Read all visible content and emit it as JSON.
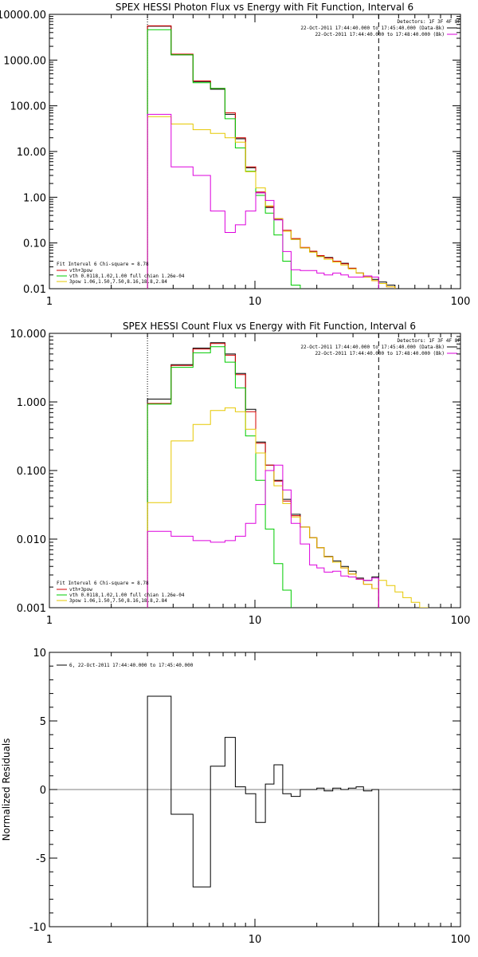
{
  "chart_data": [
    {
      "type": "line",
      "title": "SPEX HESSI Photon Flux vs Energy with Fit Function, Interval 6",
      "xscale": "log",
      "yscale": "log",
      "xlim": [
        1,
        100
      ],
      "ylim": [
        0.01,
        10000
      ],
      "yticks": [
        0.01,
        0.1,
        1,
        10,
        100,
        1000,
        10000
      ],
      "yticklabels": [
        "0.01",
        "0.10",
        "1.00",
        "10.00",
        "100.00",
        "1000.00",
        "10000.00"
      ],
      "xticks": [
        1,
        10,
        100
      ],
      "xticklabels": [
        "1",
        "10",
        "100"
      ],
      "vlines": [
        {
          "x": 3,
          "style": "dotted"
        },
        {
          "x": 40,
          "style": "dashed"
        }
      ],
      "header_text": [
        "Detectors: 1F 3F 4F 8F",
        "22-Oct-2011 17:44:40.000 to 17:45:40.000 (Data-Bk)",
        "22-Oct-2011 17:44:40.000 to 17:48:40.000 (Bk)"
      ],
      "legend_text": [
        "Fit Interval 6   Chi-square = 8.78",
        "vth+3pow",
        "vth 0.0118,1.02,1.00  full chian 1.26e-04",
        "3pow 1.06,1.50,7.50,8.16,18.8,2.84"
      ],
      "edges": [
        3.0,
        3.91,
        5.0,
        6.08,
        7.15,
        8.03,
        9.0,
        10.09,
        11.24,
        12.38,
        13.66,
        15.0,
        16.61,
        18.45,
        20.0,
        21.71,
        23.92,
        26.16,
        28.5,
        31.06,
        33.75,
        37.06,
        40.0,
        43.69,
        48.0
      ],
      "series": [
        {
          "name": "Data-Bk",
          "color": "#000000",
          "values": [
            5500,
            1300,
            340,
            230,
            65,
            19,
            4.4,
            1.25,
            0.6,
            0.33,
            0.18,
            0.12,
            0.078,
            0.065,
            0.052,
            0.048,
            0.04,
            0.036,
            0.028,
            0.022,
            0.018,
            0.016,
            0.014,
            0.012
          ]
        },
        {
          "name": "vth+3pow",
          "color": "#d40000",
          "values": [
            5600,
            1350,
            350,
            240,
            70,
            20,
            4.6,
            1.3,
            0.62,
            0.34,
            0.19,
            0.125,
            0.08,
            0.066,
            0.053,
            0.047,
            0.04,
            0.035,
            0.028,
            0.022,
            0.018,
            0.015,
            0.013,
            0.011
          ]
        },
        {
          "name": "vth",
          "color": "#00cc00",
          "values": [
            4600,
            1300,
            320,
            240,
            52,
            12,
            3.7,
            1.1,
            0.45,
            0.15,
            0.04,
            0.012,
            0.0085
          ]
        },
        {
          "name": "3pow",
          "color": "#e6c800",
          "values": [
            58,
            40,
            30,
            25,
            20,
            16,
            3.6,
            1.6,
            0.65,
            0.34,
            0.18,
            0.12,
            0.078,
            0.063,
            0.05,
            0.044,
            0.038,
            0.033,
            0.027,
            0.022,
            0.018,
            0.015,
            0.013,
            0.011
          ]
        },
        {
          "name": "Bk",
          "color": "#dd00dd",
          "values": [
            65,
            4.6,
            3.0,
            0.5,
            0.17,
            0.25,
            0.5,
            1.25,
            0.85,
            0.32,
            0.065,
            0.026,
            0.025,
            0.025,
            0.022,
            0.02,
            0.022,
            0.02,
            0.018,
            0.018,
            0.019,
            0.018
          ]
        }
      ]
    },
    {
      "type": "line",
      "title": "SPEX HESSI Count Flux vs Energy with Fit Function, Interval 6",
      "xscale": "log",
      "yscale": "log",
      "xlim": [
        1,
        100
      ],
      "ylim": [
        0.001,
        10
      ],
      "yticks": [
        0.001,
        0.01,
        0.1,
        1,
        10
      ],
      "yticklabels": [
        "0.001",
        "0.010",
        "0.100",
        "1.000",
        "10.000"
      ],
      "xticks": [
        1,
        10,
        100
      ],
      "xticklabels": [
        "1",
        "10",
        "100"
      ],
      "vlines": [
        {
          "x": 3,
          "style": "dotted"
        },
        {
          "x": 40,
          "style": "dashed"
        }
      ],
      "header_text": [
        "Detectors: 1F 3F 4F 8F",
        "22-Oct-2011 17:44:40.000 to 17:45:40.000 (Data-Bk)",
        "22-Oct-2011 17:44:40.000 to 17:48:40.000 (Bk)"
      ],
      "legend_text": [
        "Fit Interval 6   Chi-square = 8.78",
        "vth+3pow",
        "vth 0.0118,1.02,1.00  full chian 1.26e-04",
        "3pow 1.06,1.50,7.50,8.16,18.8,2.84"
      ],
      "edges": [
        3.0,
        3.91,
        5.0,
        6.08,
        7.15,
        8.03,
        9.0,
        10.09,
        11.24,
        12.38,
        13.66,
        15.0,
        16.61,
        18.45,
        20.0,
        21.71,
        23.92,
        26.16,
        28.5,
        31.06,
        33.75,
        37.06,
        40.0,
        43.69,
        48.0,
        52.45,
        57.62,
        63.31,
        69.56
      ],
      "series": [
        {
          "name": "Data-Bk",
          "color": "#000000",
          "values": [
            1.1,
            3.5,
            6.1,
            7.3,
            5.0,
            2.6,
            0.78,
            0.26,
            0.12,
            0.072,
            0.038,
            0.023,
            0.015,
            0.0105,
            0.0075,
            0.0056,
            0.0048,
            0.004,
            0.0034,
            0.0027,
            0.0025,
            0.0028
          ]
        },
        {
          "name": "vth+3pow",
          "color": "#d40000",
          "values": [
            0.95,
            3.4,
            5.9,
            7.1,
            4.8,
            2.5,
            0.72,
            0.25,
            0.12,
            0.07,
            0.036,
            0.022,
            0.015,
            0.0105,
            0.0075,
            0.0055,
            0.0046,
            0.0038,
            0.0031,
            0.0026,
            0.0022,
            0.0019
          ]
        },
        {
          "name": "vth",
          "color": "#00cc00",
          "values": [
            0.93,
            3.2,
            5.2,
            6.4,
            3.8,
            1.6,
            0.32,
            0.072,
            0.014,
            0.0044,
            0.0018,
            0.00098
          ]
        },
        {
          "name": "3pow",
          "color": "#e6c800",
          "values": [
            0.034,
            0.27,
            0.47,
            0.75,
            0.82,
            0.72,
            0.4,
            0.18,
            0.1,
            0.06,
            0.033,
            0.021,
            0.015,
            0.0105,
            0.0075,
            0.0055,
            0.0046,
            0.0038,
            0.0031,
            0.0026,
            0.0022,
            0.0019,
            0.0025,
            0.0021,
            0.0017,
            0.0014,
            0.0012,
            0.001
          ]
        },
        {
          "name": "Bk",
          "color": "#dd00dd",
          "values": [
            0.013,
            0.011,
            0.0095,
            0.009,
            0.0095,
            0.011,
            0.017,
            0.032,
            0.1,
            0.12,
            0.052,
            0.017,
            0.0085,
            0.0042,
            0.0038,
            0.0033,
            0.0034,
            0.0029,
            0.0028,
            0.0026,
            0.0025,
            0.0027
          ]
        }
      ]
    },
    {
      "type": "line",
      "title": "",
      "ylabel": "Normalized Residuals",
      "xscale": "log",
      "yscale": "linear",
      "xlim": [
        1,
        100
      ],
      "ylim": [
        -10,
        10
      ],
      "yticks": [
        -10,
        -5,
        0,
        5,
        10
      ],
      "yticklabels": [
        "-10",
        "-5",
        "0",
        "5",
        "10"
      ],
      "xticks": [
        1,
        10,
        100
      ],
      "xticklabels": [
        "1",
        "10",
        "100"
      ],
      "legend_text": [
        "6, 22-Oct-2011 17:44:40.000 to 17:45:40.000"
      ],
      "edges": [
        3.0,
        3.91,
        5.0,
        6.08,
        7.15,
        8.03,
        9.0,
        10.09,
        11.24,
        12.38,
        13.66,
        15.0,
        16.61,
        18.45,
        20.0,
        21.71,
        23.92,
        26.16,
        28.5,
        31.06,
        33.75,
        37.06,
        40.0
      ],
      "series": [
        {
          "name": "6, 22-Oct-2011 17:44:40.000 to 17:45:40.000",
          "color": "#000000",
          "values": [
            6.8,
            -1.8,
            -7.1,
            1.7,
            3.8,
            0.2,
            -0.3,
            -2.4,
            0.4,
            1.8,
            -0.3,
            -0.5,
            0.0,
            0.0,
            0.1,
            -0.1,
            0.1,
            0.0,
            0.1,
            0.2,
            -0.1,
            0.0
          ]
        }
      ]
    }
  ]
}
